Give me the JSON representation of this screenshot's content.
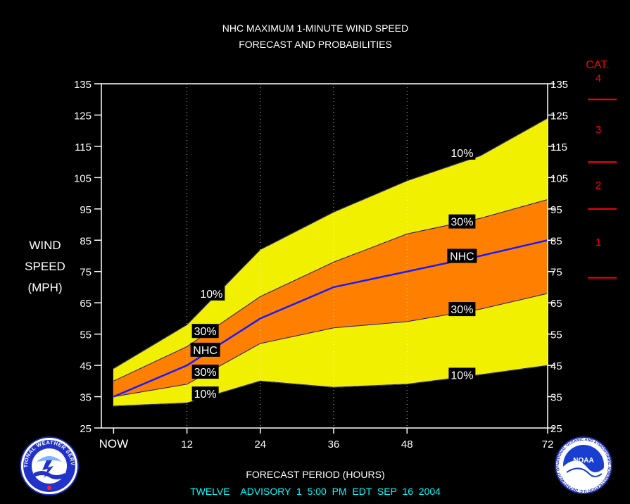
{
  "title_line1": "NHC MAXIMUM 1-MINUTE WIND SPEED",
  "title_line2": "FORECAST AND PROBABILITIES",
  "ylabel_lines": [
    "WIND",
    "SPEED",
    "(MPH)"
  ],
  "xlabel": "FORECAST PERIOD (HOURS)",
  "advisory_line": "TWELVE    ADVISORY  1  5:00  PM  EDT  SEP  16  2004",
  "category_header": "CAT.",
  "categories": [
    {
      "label": "4"
    },
    {
      "label": "3"
    },
    {
      "label": "2"
    },
    {
      "label": "1"
    }
  ],
  "category_boundaries": [
    130,
    110,
    95,
    73
  ],
  "logos": {
    "left": "nws-logo",
    "left_text": "NATIONAL WEATHER SERVICE",
    "right": "noaa-logo",
    "right_center": "NOAA",
    "right_text": "NATIONAL OCEANIC AND ATMOSPHERIC ADMINISTRATION U.S. DEPARTMENT OF COMMERCE"
  },
  "colors": {
    "background": "#000000",
    "band_10": "#f0f000",
    "band_30": "#ff8000",
    "nhc_line": "#1a1aff",
    "category": "#ff0000",
    "advisory": "#00ffff",
    "text": "#ffffff"
  },
  "chart_data": {
    "type": "area",
    "x": [
      0,
      12,
      24,
      36,
      48,
      60,
      72
    ],
    "x_tick_values": [
      0,
      12,
      24,
      36,
      48,
      72
    ],
    "x_tick_labels": [
      "NOW",
      "12",
      "24",
      "36",
      "48",
      "72"
    ],
    "xlim": [
      -2,
      71
    ],
    "ylim": [
      25,
      135
    ],
    "y_ticks": [
      25,
      35,
      45,
      55,
      65,
      75,
      85,
      95,
      105,
      115,
      125,
      135
    ],
    "gridlines_x": [
      12,
      24,
      36,
      48
    ],
    "series": [
      {
        "name": "10%",
        "values": [
          44,
          58,
          82,
          94,
          104,
          112,
          124
        ]
      },
      {
        "name": "30%",
        "values": [
          40,
          51,
          67,
          78,
          87,
          92,
          98
        ]
      },
      {
        "name": "NHC",
        "values": [
          35,
          45,
          60,
          70,
          75,
          80,
          85
        ]
      },
      {
        "name": "30%",
        "values": [
          35,
          39,
          52,
          57,
          59,
          63,
          68
        ]
      },
      {
        "name": "10%",
        "values": [
          32,
          33,
          40,
          38,
          39,
          42,
          45
        ]
      }
    ],
    "annotations": [
      {
        "text": "10%",
        "x": 16,
        "y": 68
      },
      {
        "text": "30%",
        "x": 15,
        "y": 56
      },
      {
        "text": "NHC",
        "x": 15,
        "y": 50
      },
      {
        "text": "30%",
        "x": 15,
        "y": 43
      },
      {
        "text": "10%",
        "x": 15,
        "y": 36
      },
      {
        "text": "10%",
        "x": 57,
        "y": 113
      },
      {
        "text": "30%",
        "x": 57,
        "y": 91
      },
      {
        "text": "NHC",
        "x": 57,
        "y": 80
      },
      {
        "text": "30%",
        "x": 57,
        "y": 63
      },
      {
        "text": "10%",
        "x": 57,
        "y": 42
      }
    ]
  }
}
